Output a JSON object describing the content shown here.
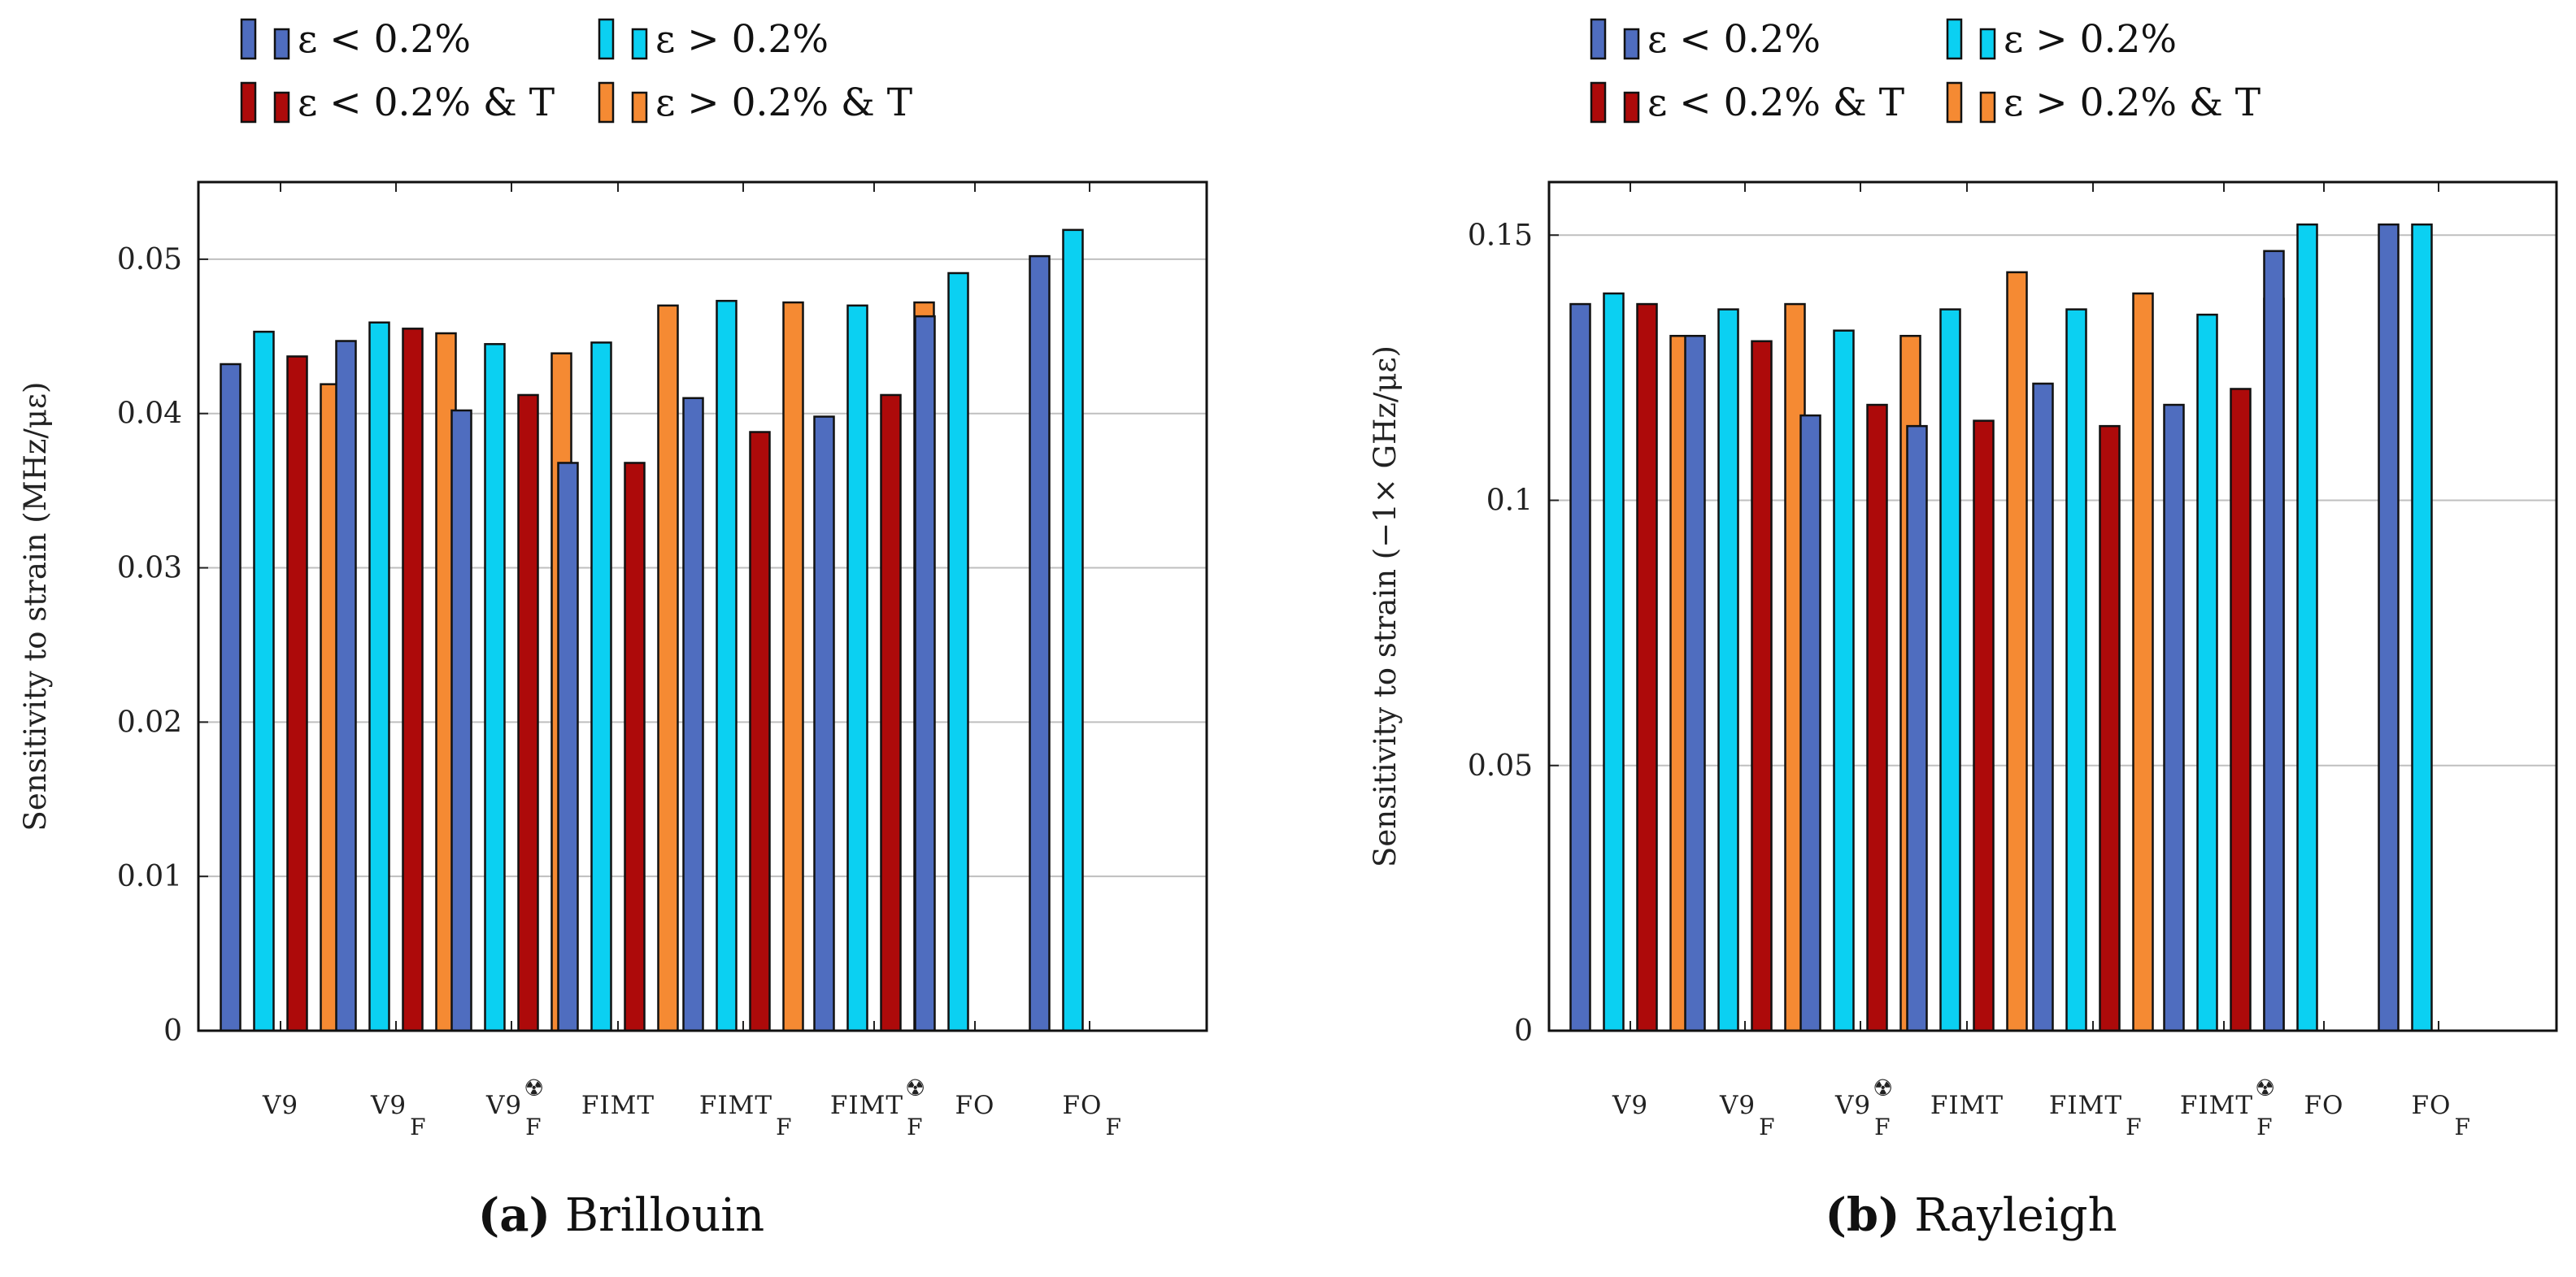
{
  "colors": {
    "eps_lt": "#4f6dbf",
    "eps_gt": "#0bd0f2",
    "eps_lt_T": "#ad0a0a",
    "eps_gt_T": "#f58a33",
    "grid": "#bfbfbf",
    "bar_stroke": "#111111"
  },
  "legend": {
    "eps_lt": "ε < 0.2%",
    "eps_gt": "ε > 0.2%",
    "eps_lt_T": "ε < 0.2% & T",
    "eps_gt_T": "ε > 0.2% & T"
  },
  "chart_data": [
    {
      "type": "bar",
      "id": "brillouin",
      "caption_letter": "(a)",
      "caption_text": "Brillouin",
      "ylabel": "Sensitivity to strain (MHz/με)",
      "ylim": [
        0,
        0.055
      ],
      "yticks": [
        0,
        0.01,
        0.02,
        0.03,
        0.04,
        0.05
      ],
      "ytick_labels": [
        "0",
        "0.01",
        "0.02",
        "0.03",
        "0.04",
        "0.05"
      ],
      "grid": true,
      "categories": [
        {
          "base": "V9",
          "sub": "",
          "sup": false
        },
        {
          "base": "V9",
          "sub": "F",
          "sup": false
        },
        {
          "base": "V9",
          "sub": "F",
          "sup": true
        },
        {
          "base": "FIMT",
          "sub": "",
          "sup": false
        },
        {
          "base": "FIMT",
          "sub": "F",
          "sup": false
        },
        {
          "base": "FIMT",
          "sub": "F",
          "sup": true
        },
        {
          "base": "FO",
          "sub": "",
          "sup": false
        },
        {
          "base": "FO",
          "sub": "F",
          "sup": false
        }
      ],
      "series": [
        {
          "name": "eps_lt",
          "values": [
            0.0432,
            0.0447,
            0.0402,
            0.0368,
            0.041,
            0.0398,
            0.0463,
            0.0502
          ]
        },
        {
          "name": "eps_gt",
          "values": [
            0.0453,
            0.0459,
            0.0445,
            0.0446,
            0.0473,
            0.047,
            0.0491,
            0.0519
          ]
        },
        {
          "name": "eps_lt_T",
          "values": [
            0.0437,
            0.0455,
            0.0412,
            0.0368,
            0.0388,
            0.0412,
            null,
            null
          ]
        },
        {
          "name": "eps_gt_T",
          "values": [
            0.0419,
            0.0452,
            0.0439,
            0.047,
            0.0472,
            0.0472,
            null,
            null
          ]
        }
      ]
    },
    {
      "type": "bar",
      "id": "rayleigh",
      "caption_letter": "(b)",
      "caption_text": "Rayleigh",
      "ylabel": "Sensitivity to strain (−1× GHz/με)",
      "ylim": [
        0,
        0.16
      ],
      "yticks": [
        0,
        0.05,
        0.1,
        0.15
      ],
      "ytick_labels": [
        "0",
        "0.05",
        "0.1",
        "0.15"
      ],
      "grid": true,
      "categories": [
        {
          "base": "V9",
          "sub": "",
          "sup": false
        },
        {
          "base": "V9",
          "sub": "F",
          "sup": false
        },
        {
          "base": "V9",
          "sub": "F",
          "sup": true
        },
        {
          "base": "FIMT",
          "sub": "",
          "sup": false
        },
        {
          "base": "FIMT",
          "sub": "F",
          "sup": false
        },
        {
          "base": "FIMT",
          "sub": "F",
          "sup": true
        },
        {
          "base": "FO",
          "sub": "",
          "sup": false
        },
        {
          "base": "FO",
          "sub": "F",
          "sup": false
        }
      ],
      "series": [
        {
          "name": "eps_lt",
          "values": [
            0.137,
            0.131,
            0.116,
            0.114,
            0.122,
            0.118,
            0.147,
            0.152
          ]
        },
        {
          "name": "eps_gt",
          "values": [
            0.139,
            0.136,
            0.132,
            0.136,
            0.136,
            0.135,
            0.152,
            0.152
          ]
        },
        {
          "name": "eps_lt_T",
          "values": [
            0.137,
            0.13,
            0.118,
            0.115,
            0.114,
            0.121,
            null,
            null
          ]
        },
        {
          "name": "eps_gt_T",
          "values": [
            0.131,
            0.137,
            0.131,
            0.143,
            0.139,
            0.138,
            null,
            null
          ]
        }
      ]
    }
  ]
}
